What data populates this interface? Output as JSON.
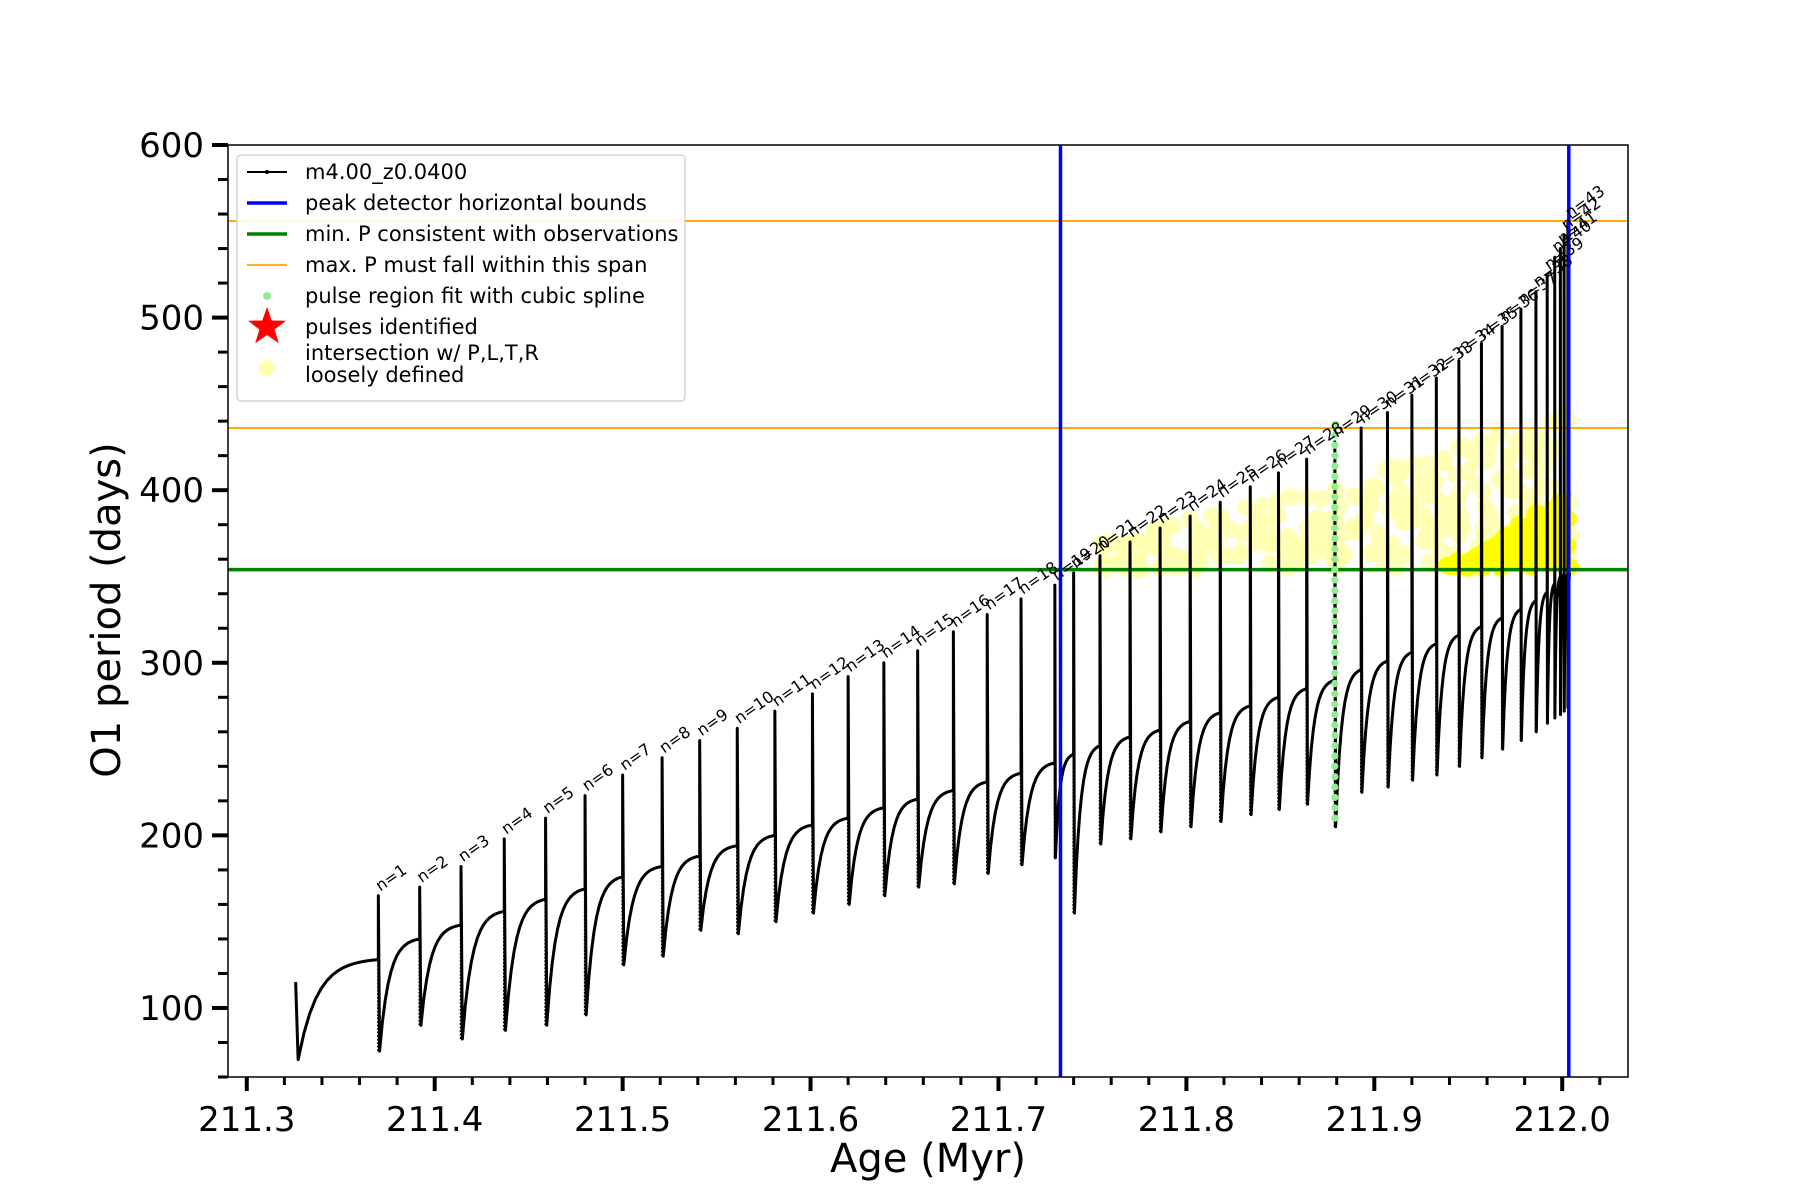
{
  "chart_data": {
    "type": "line",
    "xlabel": "Age (Myr)",
    "ylabel": "O1 period (days)",
    "xlim": [
      211.29,
      212.035
    ],
    "ylim": [
      60,
      600
    ],
    "x_ticks": [
      211.3,
      211.4,
      211.5,
      211.6,
      211.7,
      211.8,
      211.9,
      212.0
    ],
    "x_tick_labels": [
      "211.3",
      "211.4",
      "211.5",
      "211.6",
      "211.7",
      "211.8",
      "211.9",
      "212.0"
    ],
    "y_ticks": [
      100,
      200,
      300,
      400,
      500,
      600
    ],
    "y_tick_labels": [
      "100",
      "200",
      "300",
      "400",
      "500",
      "600"
    ],
    "grid": false,
    "legend_position": "top-left",
    "legend": [
      {
        "label": "m4.00_z0.0400",
        "symbol": "line-dot",
        "color": "#000000"
      },
      {
        "label": "peak detector horizontal bounds",
        "symbol": "line",
        "color": "#0000ff"
      },
      {
        "label": "min. P consistent with observations",
        "symbol": "line",
        "color": "#008000"
      },
      {
        "label": "max. P must fall within this span",
        "symbol": "thin-line",
        "color": "#ffa500"
      },
      {
        "label": "pulse region fit with cubic spline",
        "symbol": "dot",
        "color": "#90ee90"
      },
      {
        "label": "pulses identified",
        "symbol": "star",
        "color": "#ff0000"
      },
      {
        "label": "intersection w/ P,L,T,R\nloosely defined",
        "symbol": "big-dot",
        "color": "#ffffb0"
      }
    ],
    "series_line": {
      "name": "m4.00_z0.0400",
      "color": "#000000",
      "start": {
        "age": 211.326,
        "period": 115
      },
      "end_age": 212.004,
      "pulses": [
        {
          "n": 1,
          "age": 211.37,
          "peak": 165,
          "min_before": 75
        },
        {
          "n": 2,
          "age": 211.392,
          "peak": 170,
          "min_before": 90
        },
        {
          "n": 3,
          "age": 211.414,
          "peak": 182,
          "min_before": 82
        },
        {
          "n": 4,
          "age": 211.437,
          "peak": 198,
          "min_before": 87
        },
        {
          "n": 5,
          "age": 211.459,
          "peak": 210,
          "min_before": 90
        },
        {
          "n": 6,
          "age": 211.48,
          "peak": 223,
          "min_before": 96
        },
        {
          "n": 7,
          "age": 211.5,
          "peak": 235,
          "min_before": 125
        },
        {
          "n": 8,
          "age": 211.521,
          "peak": 245,
          "min_before": 130
        },
        {
          "n": 9,
          "age": 211.541,
          "peak": 255,
          "min_before": 145
        },
        {
          "n": 10,
          "age": 211.561,
          "peak": 262,
          "min_before": 143
        },
        {
          "n": 11,
          "age": 211.581,
          "peak": 272,
          "min_before": 150
        },
        {
          "n": 12,
          "age": 211.601,
          "peak": 282,
          "min_before": 155
        },
        {
          "n": 13,
          "age": 211.62,
          "peak": 292,
          "min_before": 160
        },
        {
          "n": 14,
          "age": 211.639,
          "peak": 300,
          "min_before": 165
        },
        {
          "n": 15,
          "age": 211.657,
          "peak": 307,
          "min_before": 170
        },
        {
          "n": 16,
          "age": 211.676,
          "peak": 318,
          "min_before": 172
        },
        {
          "n": 17,
          "age": 211.694,
          "peak": 328,
          "min_before": 178
        },
        {
          "n": 18,
          "age": 211.712,
          "peak": 337,
          "min_before": 183
        },
        {
          "n": 19,
          "age": 211.73,
          "peak": 345,
          "min_before": 187
        },
        {
          "n": 20,
          "age": 211.74,
          "peak": 352,
          "min_before": 155
        },
        {
          "n": 21,
          "age": 211.754,
          "peak": 362,
          "min_before": 195
        },
        {
          "n": 22,
          "age": 211.77,
          "peak": 370,
          "min_before": 198
        },
        {
          "n": 23,
          "age": 211.786,
          "peak": 378,
          "min_before": 202
        },
        {
          "n": 24,
          "age": 211.802,
          "peak": 385,
          "min_before": 205
        },
        {
          "n": 25,
          "age": 211.818,
          "peak": 393,
          "min_before": 208
        },
        {
          "n": 26,
          "age": 211.834,
          "peak": 402,
          "min_before": 212
        },
        {
          "n": 27,
          "age": 211.849,
          "peak": 410,
          "min_before": 215
        },
        {
          "n": 28,
          "age": 211.864,
          "peak": 418,
          "min_before": 218
        },
        {
          "n": 29,
          "age": 211.879,
          "peak": 428,
          "min_before": 205
        },
        {
          "n": 30,
          "age": 211.893,
          "peak": 436,
          "min_before": 225
        },
        {
          "n": 31,
          "age": 211.907,
          "peak": 445,
          "min_before": 228
        },
        {
          "n": 32,
          "age": 211.92,
          "peak": 455,
          "min_before": 232
        },
        {
          "n": 33,
          "age": 211.933,
          "peak": 465,
          "min_before": 235
        },
        {
          "n": 34,
          "age": 211.945,
          "peak": 475,
          "min_before": 240
        },
        {
          "n": 35,
          "age": 211.957,
          "peak": 485,
          "min_before": 245
        },
        {
          "n": 36,
          "age": 211.968,
          "peak": 495,
          "min_before": 250
        },
        {
          "n": 37,
          "age": 211.978,
          "peak": 505,
          "min_before": 255
        },
        {
          "n": 38,
          "age": 211.986,
          "peak": 515,
          "min_before": 260
        },
        {
          "n": 39,
          "age": 211.992,
          "peak": 525,
          "min_before": 265
        },
        {
          "n": 40,
          "age": 211.996,
          "peak": 535,
          "min_before": 268
        },
        {
          "n": 41,
          "age": 211.999,
          "peak": 540,
          "min_before": 270
        },
        {
          "n": 42,
          "age": 212.001,
          "peak": 548,
          "min_before": 272
        },
        {
          "n": 43,
          "age": 212.003,
          "peak": 555,
          "min_before": 274
        }
      ],
      "envelope_tops": [
        128,
        140,
        148,
        156,
        163,
        169,
        176,
        182,
        188,
        194,
        200,
        206,
        210,
        216,
        221,
        226,
        231,
        236,
        242,
        247,
        252,
        257,
        261,
        266,
        271,
        275,
        280,
        285,
        290,
        296,
        301,
        306,
        311,
        316,
        321,
        326,
        331,
        336,
        341,
        346,
        350,
        352,
        352,
        352
      ]
    },
    "vertical_lines": [
      {
        "name": "peak detector horizontal bounds",
        "x": 211.733,
        "color": "#0000ff"
      },
      {
        "name": "peak detector horizontal bounds",
        "x": 212.0035,
        "color": "#0000ff"
      }
    ],
    "horizontal_lines": [
      {
        "name": "min. P consistent with observations",
        "y": 354,
        "color": "#008000"
      },
      {
        "name": "max. P must fall within this span",
        "y": 436,
        "color": "#ffa500"
      },
      {
        "name": "max. P must fall within this span",
        "y": 556,
        "color": "#ffa500"
      }
    ],
    "spline_region": {
      "age": 211.879,
      "ymin": 210,
      "ymax": 440,
      "color": "#90ee90"
    },
    "intersection_region": {
      "age_start": 211.755,
      "age_end": 212.005,
      "ymin": 354,
      "ymax_start": 370,
      "ymax_end": 445,
      "color": "#ffffb0"
    },
    "dense_region": {
      "age_start": 211.937,
      "age_end": 212.005,
      "ymin": 354,
      "ymax_start": 356,
      "ymax_end": 400,
      "color": "#ffff00"
    }
  }
}
